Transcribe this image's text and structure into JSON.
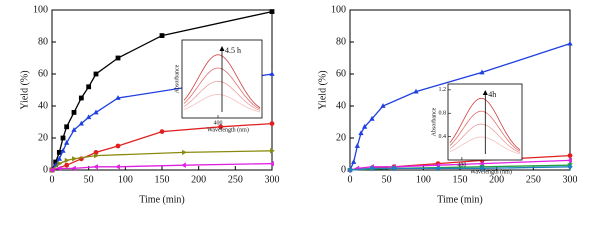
{
  "chart_data": [
    {
      "type": "line",
      "xlabel": "Time (min)",
      "ylabel": "Yield (%)",
      "xlim": [
        0,
        300
      ],
      "ylim": [
        0,
        100
      ],
      "xticks": [
        0,
        50,
        100,
        150,
        200,
        250,
        300
      ],
      "yticks": [
        0,
        20,
        40,
        60,
        80,
        100
      ],
      "series": [
        {
          "color": "#000000",
          "marker": "square",
          "x": [
            0,
            5,
            10,
            15,
            20,
            30,
            40,
            50,
            60,
            90,
            150,
            300
          ],
          "values": [
            0,
            5,
            11,
            20,
            27,
            36,
            45,
            52,
            60,
            70,
            84,
            99
          ]
        },
        {
          "color": "#1f3fe0",
          "marker": "triangle-up",
          "x": [
            0,
            5,
            10,
            15,
            20,
            30,
            40,
            50,
            60,
            90,
            300
          ],
          "values": [
            0,
            3,
            7,
            12,
            17,
            25,
            29,
            33,
            36,
            45,
            60
          ]
        },
        {
          "color": "#e02020",
          "marker": "circle",
          "x": [
            0,
            20,
            40,
            60,
            90,
            150,
            230,
            300
          ],
          "values": [
            0,
            3,
            7,
            11,
            15,
            24,
            27,
            29
          ]
        },
        {
          "color": "#8a8a10",
          "marker": "triangle-right",
          "x": [
            0,
            10,
            20,
            30,
            60,
            180,
            300
          ],
          "values": [
            0,
            4,
            6,
            7,
            9,
            11,
            12
          ]
        },
        {
          "color": "#e020e0",
          "marker": "triangle-left",
          "x": [
            0,
            10,
            30,
            60,
            90,
            180,
            300
          ],
          "values": [
            0,
            1,
            1,
            2,
            2,
            3,
            4
          ]
        }
      ],
      "inset": {
        "xlabel": "Wavelength (nm)",
        "ylabel": "Absorbance",
        "xlim": [
          310,
          510
        ],
        "xticks": [
          400
        ],
        "annotation": "4.5 h"
      }
    },
    {
      "type": "line",
      "xlabel": "Time (min)",
      "ylabel": "Yield (%)",
      "xlim": [
        0,
        300
      ],
      "ylim": [
        0,
        100
      ],
      "xticks": [
        0,
        50,
        100,
        150,
        200,
        250,
        300
      ],
      "yticks": [
        0,
        20,
        40,
        60,
        80,
        100
      ],
      "series": [
        {
          "color": "#1f3fe0",
          "marker": "triangle-up",
          "x": [
            0,
            5,
            10,
            15,
            20,
            30,
            45,
            90,
            180,
            300
          ],
          "values": [
            0,
            5,
            15,
            23,
            27,
            32,
            40,
            49,
            61,
            79
          ]
        },
        {
          "color": "#e02020",
          "marker": "circle",
          "x": [
            0,
            60,
            120,
            180,
            300
          ],
          "values": [
            0,
            2,
            4,
            6,
            9
          ]
        },
        {
          "color": "#e020e0",
          "marker": "triangle-left",
          "x": [
            0,
            10,
            30,
            60,
            120,
            180,
            300
          ],
          "values": [
            0,
            1,
            2,
            2,
            3,
            4,
            6
          ]
        },
        {
          "color": "#20a040",
          "marker": "triangle-down",
          "x": [
            0,
            60,
            180,
            300
          ],
          "values": [
            0,
            1,
            2,
            3
          ]
        },
        {
          "color": "#2080c0",
          "marker": "diamond",
          "x": [
            0,
            30,
            60,
            120,
            180,
            300
          ],
          "values": [
            0,
            1,
            1,
            1,
            1,
            2
          ]
        }
      ],
      "inset": {
        "xlabel": "Wavelength (nm)",
        "ylabel": "Absorbance",
        "xlim": [
          370,
          530
        ],
        "ylim": [
          0,
          1.3
        ],
        "xticks": [
          400
        ],
        "yticks": [
          0.4,
          0.8,
          1.2
        ],
        "annotation": "4h"
      }
    }
  ]
}
